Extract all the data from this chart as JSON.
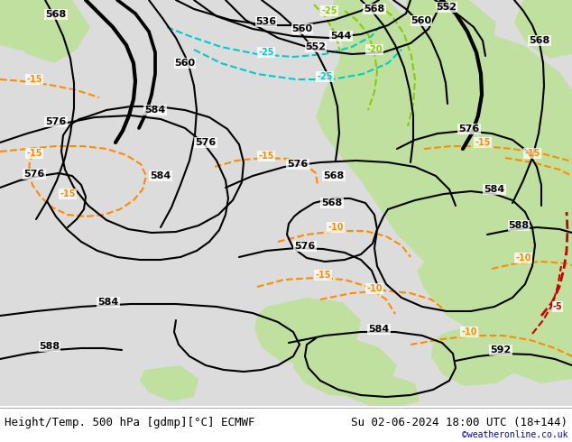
{
  "title_left": "Height/Temp. 500 hPa [gdmp][°C] ECMWF",
  "title_right": "Su 02-06-2024 18:00 UTC (18+144)",
  "credit": "©weatheronline.co.uk",
  "bg_sea_color": "#e0e0e0",
  "bg_land_color": "#c8e8b8",
  "bottom_text_color": "#000000",
  "credit_color": "#0000cc",
  "font_size_bottom": 9,
  "font_size_label": 7,
  "black": "#000000",
  "orange": "#ff8c00",
  "cyan": "#00cccc",
  "green": "#88cc00",
  "red": "#cc0000"
}
